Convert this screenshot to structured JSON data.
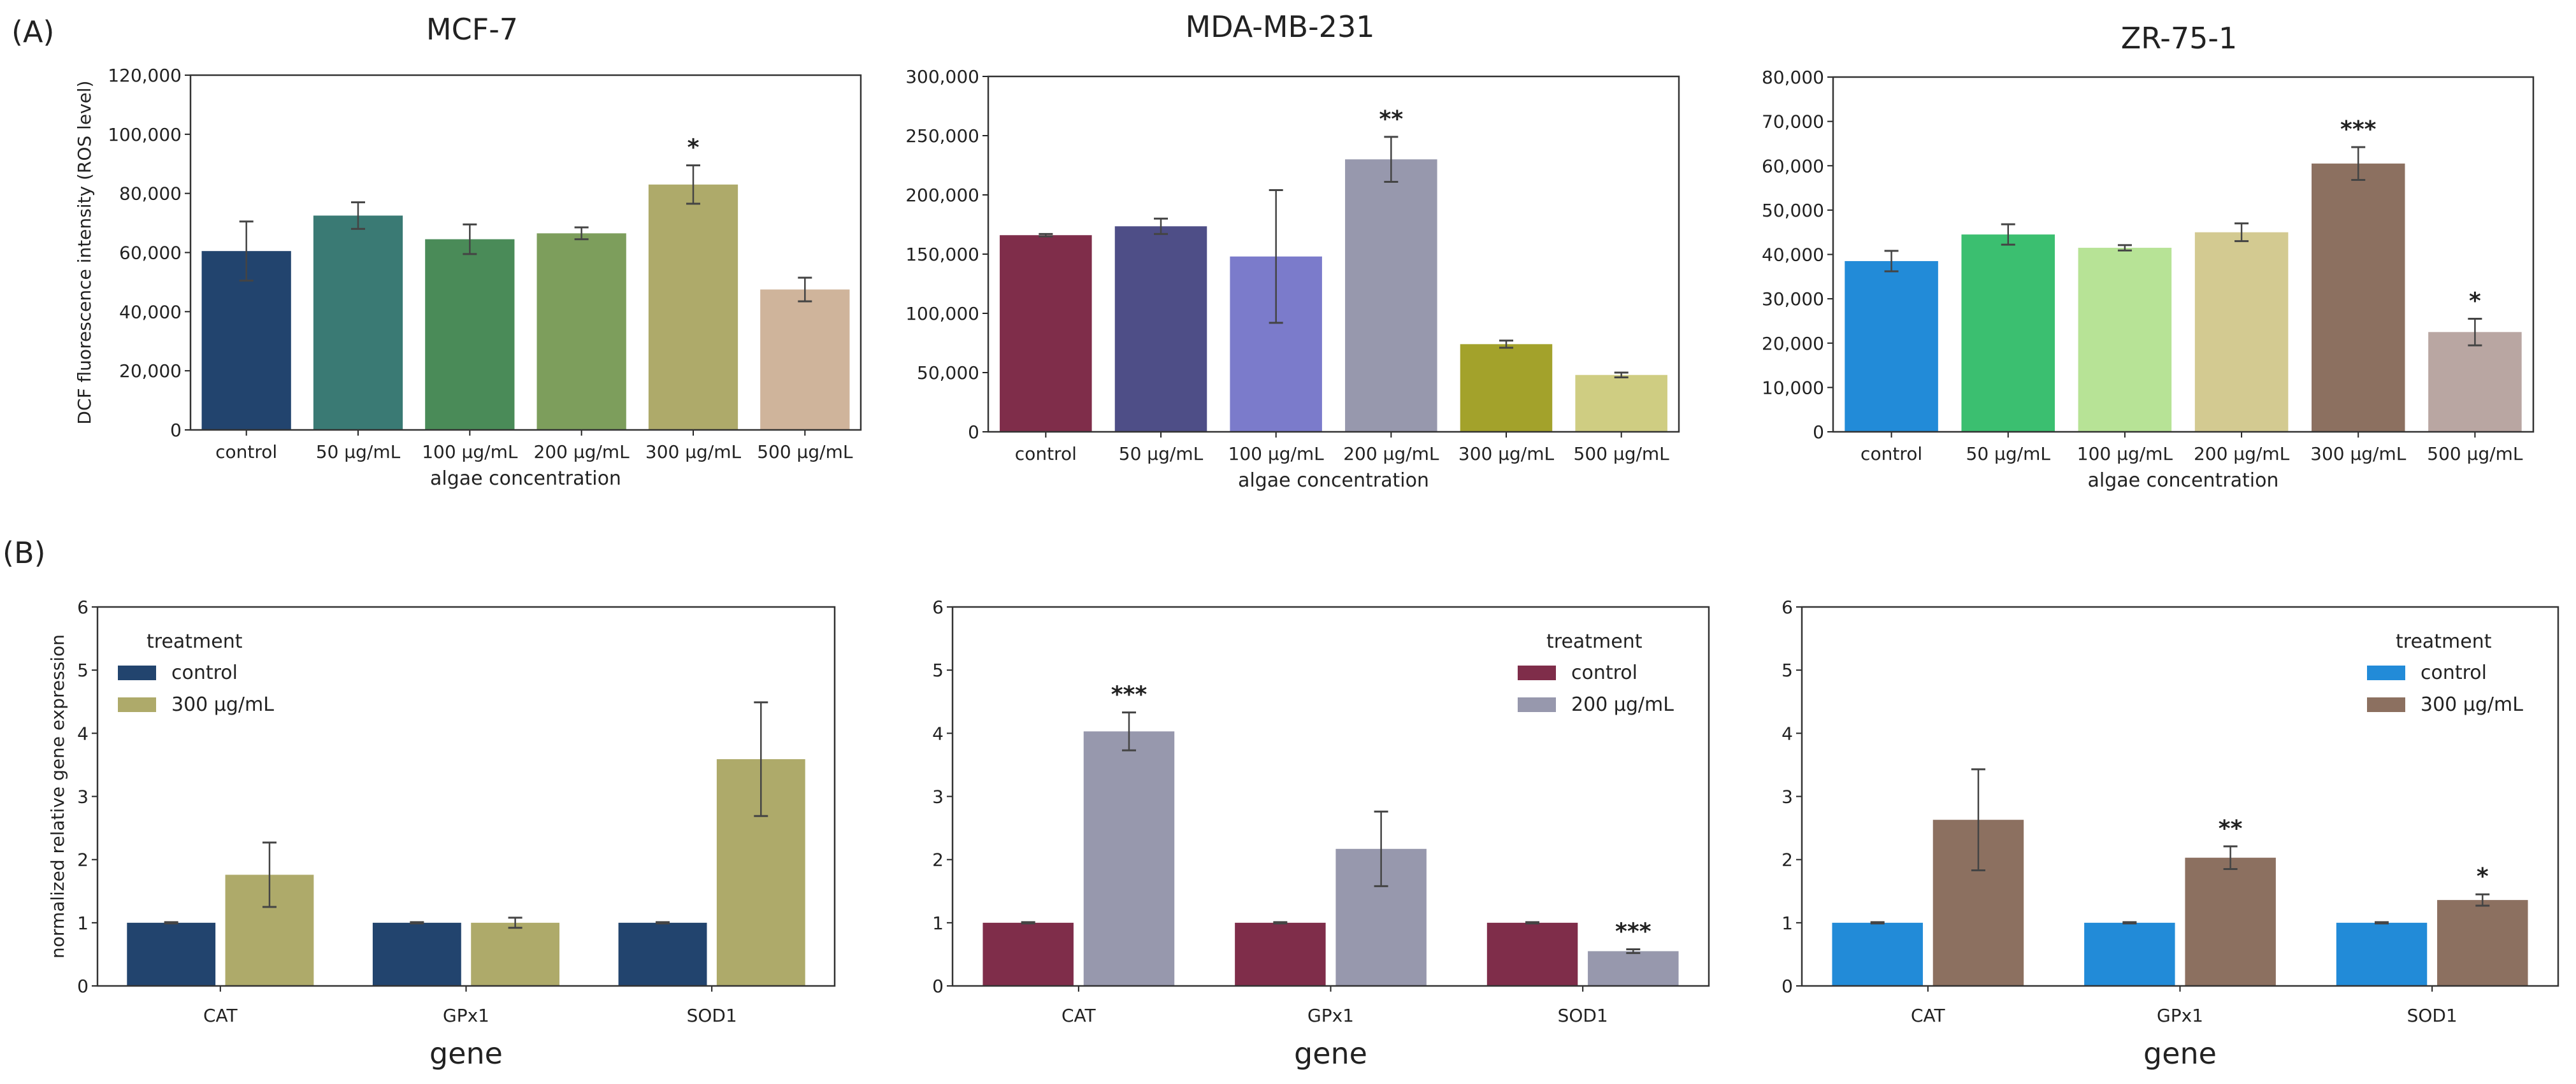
{
  "panel_labels": {
    "a": "(A)",
    "b": "(B)"
  },
  "chart_data": [
    {
      "type": "bar",
      "title": "MCF-7",
      "xlabel": "algae concentration",
      "ylabel": "DCF fluorescence intensity (ROS level)",
      "ylim": [
        0,
        120000
      ],
      "yticks": [
        0,
        20000,
        40000,
        60000,
        80000,
        100000,
        120000
      ],
      "ytick_labels": [
        "0",
        "20,000",
        "40,000",
        "60,000",
        "80,000",
        "100,000",
        "120,000"
      ],
      "categories": [
        "control",
        "50 µg/mL",
        "100 µg/mL",
        "200 µg/mL",
        "300 µg/mL",
        "500 µg/mL"
      ],
      "values": [
        60500,
        72500,
        64500,
        66500,
        83000,
        47500
      ],
      "errors": [
        10000,
        4500,
        5000,
        2000,
        6500,
        4000
      ],
      "significance": [
        "",
        "",
        "",
        "",
        "*",
        ""
      ],
      "colors": [
        "#22446e",
        "#3a7a74",
        "#4a8b58",
        "#7d9e5c",
        "#aeaa6a",
        "#cfb49b"
      ]
    },
    {
      "type": "bar",
      "title": "MDA-MB-231",
      "xlabel": "algae concentration",
      "ylabel": "",
      "ylim": [
        0,
        300000
      ],
      "yticks": [
        0,
        50000,
        100000,
        150000,
        200000,
        250000,
        300000
      ],
      "ytick_labels": [
        "0",
        "50,000",
        "100,000",
        "150,000",
        "200,000",
        "250,000",
        "300,000"
      ],
      "categories": [
        "control",
        "50 µg/mL",
        "100 µg/mL",
        "200 µg/mL",
        "300 µg/mL",
        "500 µg/mL"
      ],
      "values": [
        166000,
        173500,
        148000,
        230000,
        74000,
        48000
      ],
      "errors": [
        1000,
        6500,
        56000,
        19000,
        3000,
        2000
      ],
      "significance": [
        "",
        "",
        "",
        "**",
        "",
        ""
      ],
      "colors": [
        "#7f2d4a",
        "#4e4e87",
        "#7b7bcb",
        "#9798ad",
        "#a3a22b",
        "#cfcd82"
      ]
    },
    {
      "type": "bar",
      "title": "ZR-75-1",
      "xlabel": "algae concentration",
      "ylabel": "",
      "ylim": [
        0,
        80000
      ],
      "yticks": [
        0,
        10000,
        20000,
        30000,
        40000,
        50000,
        60000,
        70000,
        80000
      ],
      "ytick_labels": [
        "0",
        "10,000",
        "20,000",
        "30,000",
        "40,000",
        "50,000",
        "60,000",
        "70,000",
        "80,000"
      ],
      "categories": [
        "control",
        "50 µg/mL",
        "100 µg/mL",
        "200 µg/mL",
        "300 µg/mL",
        "500 µg/mL"
      ],
      "values": [
        38500,
        44500,
        41500,
        45000,
        60500,
        22500
      ],
      "errors": [
        2300,
        2300,
        600,
        2000,
        3700,
        3000
      ],
      "significance": [
        "",
        "",
        "",
        "",
        "***",
        "*"
      ],
      "colors": [
        "#228bd8",
        "#3bbf70",
        "#b7e396",
        "#d3ca91",
        "#8c7060",
        "#b9a6a2"
      ]
    },
    {
      "type": "bar",
      "title": "",
      "xlabel": "gene",
      "ylabel": "normalized relative gene expression",
      "ylim": [
        0,
        6
      ],
      "yticks": [
        0,
        1,
        2,
        3,
        4,
        5,
        6
      ],
      "ytick_labels": [
        "0",
        "1",
        "2",
        "3",
        "4",
        "5",
        "6"
      ],
      "categories": [
        "CAT",
        "GPx1",
        "SOD1"
      ],
      "legend": {
        "title": "treatment",
        "position": "top-left"
      },
      "series": [
        {
          "name": "control",
          "color": "#22446e",
          "values": [
            1.0,
            1.0,
            1.0
          ],
          "errors": [
            0.01,
            0.01,
            0.01
          ],
          "significance": [
            "",
            "",
            ""
          ]
        },
        {
          "name": "300 µg/mL",
          "color": "#aeaa6a",
          "values": [
            1.76,
            1.0,
            3.59
          ],
          "errors": [
            0.51,
            0.08,
            0.9
          ],
          "significance": [
            "",
            "",
            ""
          ]
        }
      ]
    },
    {
      "type": "bar",
      "title": "",
      "xlabel": "gene",
      "ylabel": "",
      "ylim": [
        0,
        6
      ],
      "yticks": [
        0,
        1,
        2,
        3,
        4,
        5,
        6
      ],
      "ytick_labels": [
        "0",
        "1",
        "2",
        "3",
        "4",
        "5",
        "6"
      ],
      "categories": [
        "CAT",
        "GPx1",
        "SOD1"
      ],
      "legend": {
        "title": "treatment",
        "position": "top-right"
      },
      "series": [
        {
          "name": "control",
          "color": "#7f2d4a",
          "values": [
            1.0,
            1.0,
            1.0
          ],
          "errors": [
            0.01,
            0.01,
            0.01
          ],
          "significance": [
            "",
            "",
            ""
          ]
        },
        {
          "name": "200 µg/mL",
          "color": "#9798ad",
          "values": [
            4.03,
            2.17,
            0.55
          ],
          "errors": [
            0.3,
            0.59,
            0.03
          ],
          "significance": [
            "***",
            "",
            "***"
          ]
        }
      ]
    },
    {
      "type": "bar",
      "title": "",
      "xlabel": "gene",
      "ylabel": "",
      "ylim": [
        0,
        6
      ],
      "yticks": [
        0,
        1,
        2,
        3,
        4,
        5,
        6
      ],
      "ytick_labels": [
        "0",
        "1",
        "2",
        "3",
        "4",
        "5",
        "6"
      ],
      "categories": [
        "CAT",
        "GPx1",
        "SOD1"
      ],
      "legend": {
        "title": "treatment",
        "position": "top-right"
      },
      "series": [
        {
          "name": "control",
          "color": "#228bd8",
          "values": [
            1.0,
            1.0,
            1.0
          ],
          "errors": [
            0.01,
            0.01,
            0.01
          ],
          "significance": [
            "",
            "",
            ""
          ]
        },
        {
          "name": "300 µg/mL",
          "color": "#8c7060",
          "values": [
            2.63,
            2.03,
            1.36
          ],
          "errors": [
            0.8,
            0.18,
            0.09
          ],
          "significance": [
            "",
            "**",
            "*"
          ]
        }
      ]
    }
  ]
}
